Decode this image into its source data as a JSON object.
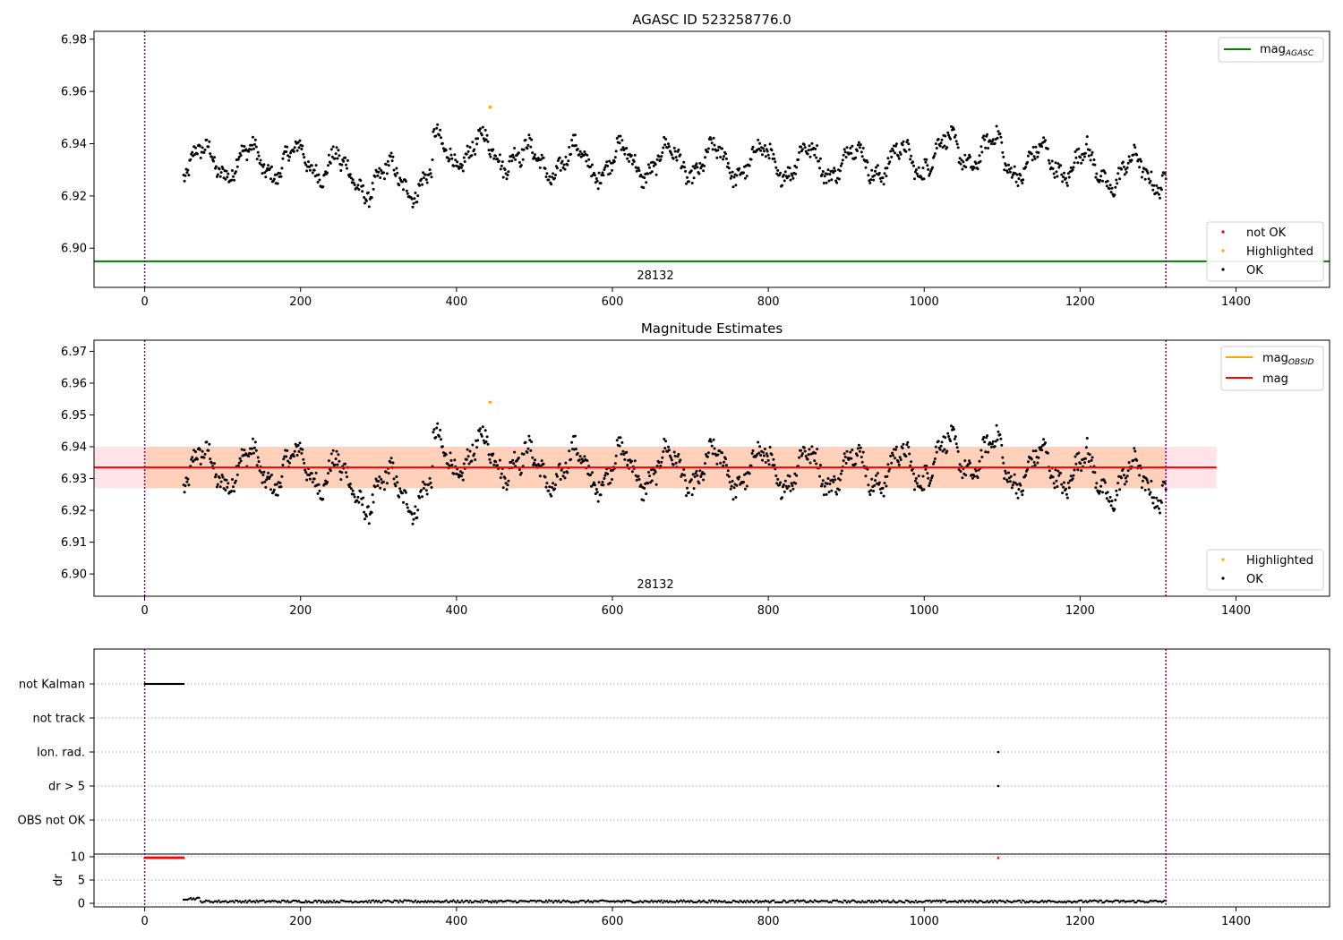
{
  "chart_data": [
    {
      "type": "scatter",
      "title": "AGASC ID 523258776.0",
      "obsid_label": "28132",
      "xlim": [
        -65,
        1520
      ],
      "ylim": [
        6.885,
        6.983
      ],
      "xticks": [
        "0",
        "200",
        "400",
        "600",
        "800",
        "1000",
        "1200",
        "1400"
      ],
      "xtick_values": [
        0,
        200,
        400,
        600,
        800,
        1000,
        1200,
        1400
      ],
      "yticks": [
        "6.90",
        "6.92",
        "6.94",
        "6.96",
        "6.98"
      ],
      "ytick_values": [
        6.9,
        6.92,
        6.94,
        6.96,
        6.98
      ],
      "obs_boundaries": [
        0,
        1310
      ],
      "mag_agasc": 6.895,
      "legend_lines": [
        {
          "name": "mag",
          "subscript": "AGASC",
          "color": "#008000"
        }
      ],
      "legend_points": [
        {
          "name": "not OK",
          "color": "#ff0000"
        },
        {
          "name": "Highlighted",
          "color": "#ffa500"
        },
        {
          "name": "OK",
          "color": "#000000"
        }
      ],
      "highlighted_points": [
        {
          "x": 443,
          "y": 6.954
        }
      ],
      "series_ok": {
        "name": "OK",
        "x_range": [
          50,
          1310
        ],
        "n_points": 1150,
        "mean": 6.933,
        "spread": 0.007
      }
    },
    {
      "type": "scatter",
      "title": "Magnitude Estimates",
      "obsid_label": "28132",
      "xlim": [
        -65,
        1520
      ],
      "ylim": [
        6.893,
        6.9735
      ],
      "xticks": [
        "0",
        "200",
        "400",
        "600",
        "800",
        "1000",
        "1200",
        "1400"
      ],
      "xtick_values": [
        0,
        200,
        400,
        600,
        800,
        1000,
        1200,
        1400
      ],
      "yticks": [
        "6.90",
        "6.91",
        "6.92",
        "6.93",
        "6.94",
        "6.95",
        "6.96",
        "6.97"
      ],
      "ytick_values": [
        6.9,
        6.91,
        6.92,
        6.93,
        6.94,
        6.95,
        6.96,
        6.97
      ],
      "obs_boundaries": [
        0,
        1310
      ],
      "mag": 6.9335,
      "mag_band": [
        6.927,
        6.94
      ],
      "mag_band_xrange": [
        -65,
        1375
      ],
      "mag_obsid": 6.9335,
      "obsid_band_xrange": [
        0,
        1310
      ],
      "legend_lines": [
        {
          "name": "mag",
          "subscript": "OBSID",
          "color": "#ffa500"
        },
        {
          "name": "mag",
          "subscript": "",
          "color": "#ff0000"
        }
      ],
      "legend_points": [
        {
          "name": "Highlighted",
          "color": "#ffa500"
        },
        {
          "name": "OK",
          "color": "#000000"
        }
      ],
      "highlighted_points": [
        {
          "x": 443,
          "y": 6.954
        }
      ]
    },
    {
      "type": "scatter",
      "title": "",
      "xlim": [
        -65,
        1520
      ],
      "xticks": [
        "0",
        "200",
        "400",
        "600",
        "800",
        "1000",
        "1200",
        "1400"
      ],
      "xtick_values": [
        0,
        200,
        400,
        600,
        800,
        1000,
        1200,
        1400
      ],
      "flags": [
        "not Kalman",
        "not track",
        "Ion. rad.",
        "dr > 5",
        "OBS not OK"
      ],
      "flag_points": {
        "not Kalman": {
          "x_range": [
            0,
            50
          ]
        },
        "Ion. rad.": {
          "x": [
            1095
          ]
        },
        "dr > 5": {
          "x": [
            1095
          ]
        }
      },
      "dr_ylabel": "dr",
      "dr_yticks": [
        "0",
        "5",
        "10"
      ],
      "dr_ytick_values": [
        0,
        5,
        10
      ],
      "dr_ylim": [
        -0.5,
        10.5
      ],
      "dr_clipped": {
        "x_range": [
          0,
          50
        ],
        "extra_x": [
          1095
        ],
        "y": 9.8,
        "color": "#ff0000"
      },
      "dr_series": {
        "x_range": [
          50,
          1310
        ],
        "typical": 0.3
      }
    }
  ]
}
